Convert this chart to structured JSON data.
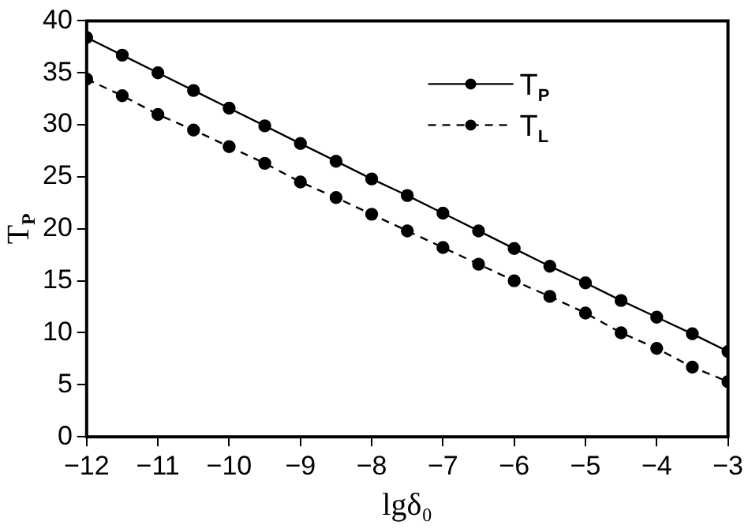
{
  "chart_data": {
    "type": "line",
    "xlabel": "lgδ₀",
    "ylabel": "T$_{P}$",
    "x": [
      -12,
      -11.5,
      -11,
      -10.5,
      -10,
      -9.5,
      -9,
      -8.5,
      -8,
      -7.5,
      -7,
      -6.5,
      -6,
      -5.5,
      -5,
      -4.5,
      -4,
      -3.5,
      -3
    ],
    "series": [
      {
        "name": "T$_{P}$",
        "color": "#000000",
        "line_style": "solid",
        "values": [
          38.4,
          36.7,
          35.0,
          33.3,
          31.6,
          29.9,
          28.2,
          26.5,
          24.8,
          23.2,
          21.5,
          19.8,
          18.1,
          16.4,
          14.8,
          13.1,
          11.5,
          9.9,
          8.2
        ]
      },
      {
        "name": "T$_{L}$",
        "color": "#000000",
        "line_style": "dashed",
        "values": [
          34.4,
          32.8,
          31.0,
          29.5,
          27.9,
          26.3,
          24.5,
          23.0,
          21.4,
          19.8,
          18.2,
          16.6,
          15.0,
          13.5,
          11.9,
          10.0,
          8.5,
          6.7,
          5.3
        ]
      }
    ],
    "xlim": [
      -12,
      -3
    ],
    "xticks": [
      -12,
      -11,
      -10,
      -9,
      -8,
      -7,
      -6,
      -5,
      -4,
      -3
    ],
    "ylim": [
      0,
      40
    ],
    "yticks": [
      0,
      5,
      10,
      15,
      20,
      25,
      30,
      35,
      40
    ],
    "grid": false,
    "legend": "top right",
    "marker": "circle"
  }
}
